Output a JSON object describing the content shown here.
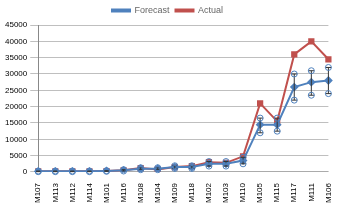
{
  "chart_data": {
    "type": "line",
    "categories": [
      "M107",
      "M113",
      "M112",
      "M114",
      "M101",
      "M116",
      "M108",
      "M104",
      "M109",
      "M118",
      "M102",
      "M103",
      "M110",
      "M105",
      "M115",
      "M117",
      "M111",
      "M106"
    ],
    "series": [
      {
        "name": "Forecast",
        "color": "#4f81bd",
        "marker": "diamond",
        "values": [
          200,
          200,
          200,
          200,
          300,
          500,
          1000,
          1000,
          1500,
          1500,
          2500,
          2500,
          3500,
          14500,
          14500,
          26000,
          27500,
          28000
        ],
        "error_low": [
          100,
          100,
          100,
          100,
          200,
          300,
          700,
          700,
          1100,
          1100,
          1800,
          1800,
          2500,
          12000,
          12500,
          22000,
          23500,
          24000
        ],
        "error_high": [
          300,
          300,
          300,
          300,
          400,
          700,
          1300,
          1300,
          1900,
          1900,
          3200,
          3200,
          4500,
          16500,
          16500,
          30000,
          31000,
          32000
        ]
      },
      {
        "name": "Actual",
        "color": "#c0504d",
        "marker": "square",
        "values": [
          200,
          200,
          200,
          200,
          300,
          500,
          1200,
          800,
          1500,
          1800,
          3000,
          2800,
          4800,
          21000,
          15500,
          36000,
          40000,
          34500
        ]
      }
    ],
    "ylim": [
      0,
      45000
    ],
    "yticks": [
      0,
      5000,
      10000,
      15000,
      20000,
      25000,
      30000,
      35000,
      40000,
      45000
    ],
    "grid": true,
    "legend": "top"
  }
}
